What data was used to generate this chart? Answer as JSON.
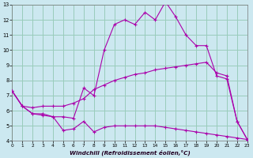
{
  "bg_color": "#cce8f0",
  "line_color": "#aa00aa",
  "xlabel": "Windchill (Refroidissement éolien,°C)",
  "xlim": [
    0,
    23
  ],
  "ylim": [
    4,
    13
  ],
  "yticks": [
    4,
    5,
    6,
    7,
    8,
    9,
    10,
    11,
    12,
    13
  ],
  "xticks": [
    0,
    1,
    2,
    3,
    4,
    5,
    6,
    7,
    8,
    9,
    10,
    11,
    12,
    13,
    14,
    15,
    16,
    17,
    18,
    19,
    20,
    21,
    22,
    23
  ],
  "grid_color": "#99ccbb",
  "line1_x": [
    0,
    1,
    2,
    3,
    4,
    5,
    6,
    7,
    8,
    9,
    10,
    11,
    12,
    13,
    14,
    15,
    16,
    17,
    18,
    19,
    20,
    21,
    22,
    23
  ],
  "line1_y": [
    7.3,
    6.3,
    5.8,
    5.8,
    5.6,
    4.7,
    4.8,
    5.3,
    4.6,
    4.9,
    5.0,
    5.0,
    5.0,
    5.0,
    5.0,
    4.9,
    4.8,
    4.7,
    4.6,
    4.5,
    4.4,
    4.3,
    4.2,
    4.1
  ],
  "line2_x": [
    0,
    1,
    2,
    3,
    4,
    5,
    6,
    7,
    8,
    9,
    10,
    11,
    12,
    13,
    14,
    15,
    16,
    17,
    18,
    19,
    20,
    21,
    22,
    23
  ],
  "line2_y": [
    7.3,
    6.3,
    6.2,
    6.3,
    6.3,
    6.3,
    6.5,
    6.8,
    7.4,
    7.7,
    8.0,
    8.2,
    8.4,
    8.5,
    8.7,
    8.8,
    8.9,
    9.0,
    9.1,
    9.2,
    8.5,
    8.3,
    5.3,
    4.1
  ],
  "line3_x": [
    0,
    1,
    2,
    3,
    4,
    5,
    6,
    7,
    8,
    9,
    10,
    11,
    12,
    13,
    14,
    15,
    16,
    17,
    18,
    19,
    20,
    21,
    22,
    23
  ],
  "line3_y": [
    7.3,
    6.3,
    5.8,
    5.7,
    5.6,
    5.6,
    5.5,
    7.5,
    7.0,
    10.0,
    11.7,
    12.0,
    11.7,
    12.5,
    12.0,
    13.2,
    12.2,
    11.0,
    10.3,
    10.3,
    8.3,
    8.1,
    5.3,
    4.1
  ],
  "xlabel_color": "#220022",
  "spine_color": "#777777"
}
